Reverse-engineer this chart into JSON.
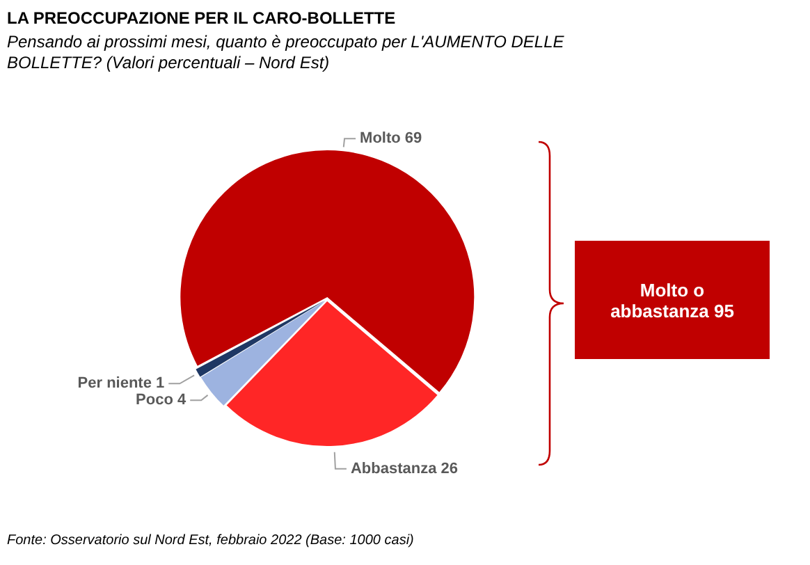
{
  "chart_data": {
    "type": "pie",
    "title": "LA PREOCCUPAZIONE PER IL CARO-BOLLETTE",
    "subtitle": "Pensando ai prossimi mesi, quanto è preoccupato per L'AUMENTO DELLE BOLLETTE? (Valori percentuali – Nord Est)",
    "categories": [
      "Molto",
      "Abbastanza",
      "Poco",
      "Per niente"
    ],
    "values": [
      69,
      26,
      4,
      1
    ],
    "colors": [
      "#c00000",
      "#ff2626",
      "#9db3e0",
      "#1f3864"
    ],
    "data_labels": true,
    "legend": false,
    "annotations": [
      "Molto o abbastanza 95",
      "Fonte: Osservatorio sul Nord Est, febbraio 2022 (Base: 1000 casi)"
    ]
  }
}
